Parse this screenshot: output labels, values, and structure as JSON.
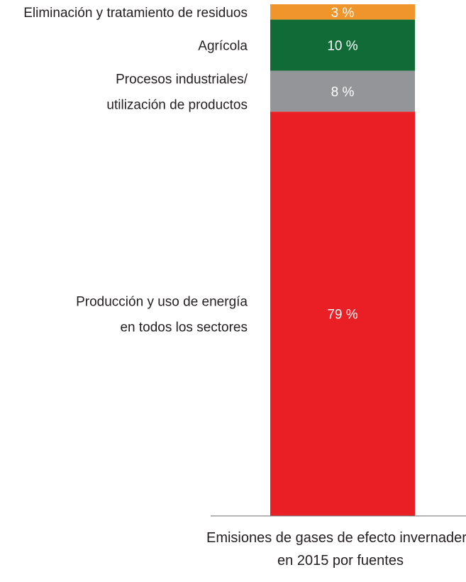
{
  "chart_data": {
    "type": "bar",
    "stacked": true,
    "orientation": "vertical",
    "segments": [
      {
        "category": "Eliminación y tratamiento de residuos",
        "lines": [
          "Eliminación y tratamiento de residuos"
        ],
        "value": 3,
        "label": "3 %",
        "color": "#f0952b"
      },
      {
        "category": "Agrícola",
        "lines": [
          "Agrícola"
        ],
        "value": 10,
        "label": "10  %",
        "color": "#116b37"
      },
      {
        "category": "Procesos industriales/ utilización de productos",
        "lines": [
          "Procesos industriales/",
          "utilización de productos"
        ],
        "value": 8,
        "label": "8 %",
        "color": "#939598"
      },
      {
        "category": "Producción y uso de energía en todos los sectores",
        "lines": [
          "Producción y uso de energía",
          "en todos los sectores"
        ],
        "value": 79,
        "label": "79 %",
        "color": "#e91f25"
      }
    ],
    "caption": [
      "Emisiones de gases de efecto invernadero",
      "en 2015 por fuentes"
    ]
  }
}
